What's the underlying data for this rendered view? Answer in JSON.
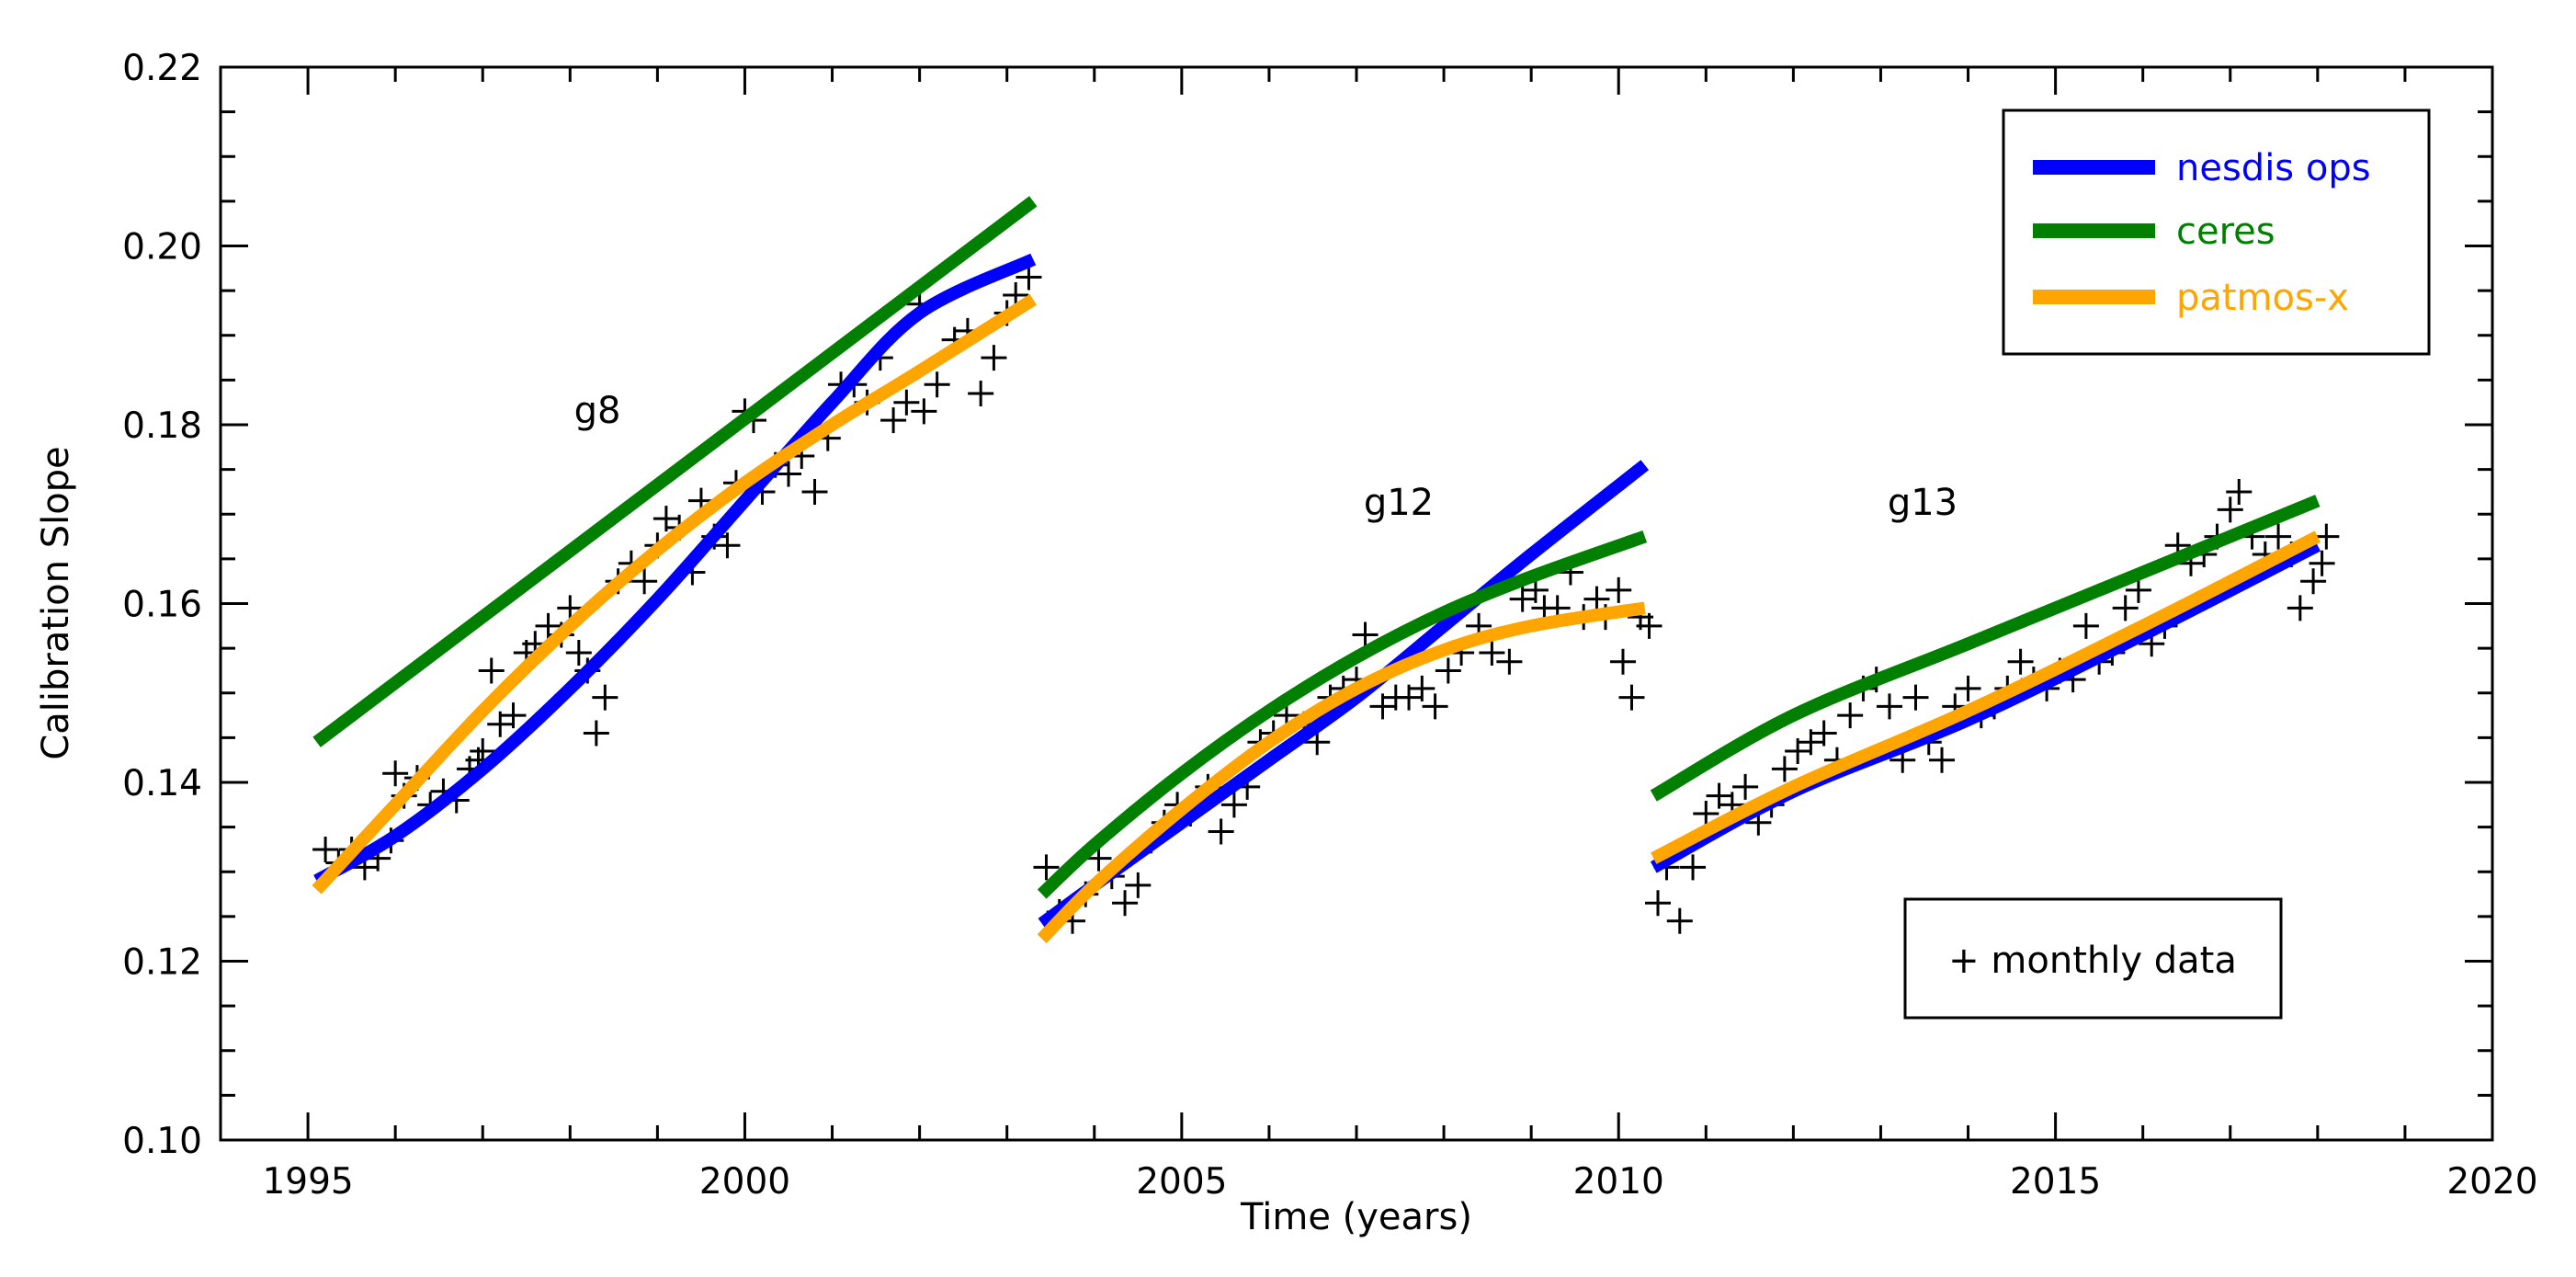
{
  "chart_data": {
    "type": "line",
    "title": "",
    "xlabel": "Time (years)",
    "ylabel": "Calibration Slope",
    "xlim": [
      1994,
      2020
    ],
    "ylim": [
      0.1,
      0.22
    ],
    "x_ticks": [
      1995,
      2000,
      2005,
      2010,
      2015,
      2020
    ],
    "x_tick_labels": [
      "1995",
      "2000",
      "2005",
      "2010",
      "2015",
      "2020"
    ],
    "y_ticks": [
      0.1,
      0.12,
      0.14,
      0.16,
      0.18,
      0.2,
      0.22
    ],
    "y_tick_labels": [
      "0.10",
      "0.12",
      "0.14",
      "0.16",
      "0.18",
      "0.20",
      "0.22"
    ],
    "grid": false,
    "legend": {
      "position": "top-right",
      "entries": [
        {
          "name": "nesdis ops",
          "color": "#0000ff"
        },
        {
          "name": "ceres",
          "color": "#007f00"
        },
        {
          "name": "patmos-x",
          "color": "#ffa500"
        }
      ]
    },
    "scatter_legend": {
      "label": "+ monthly data",
      "position": "bottom-right"
    },
    "annotations": [
      {
        "text": "g8",
        "x": 1998.2,
        "y": 0.181
      },
      {
        "text": "g12",
        "x": 2007.6,
        "y": 0.171
      },
      {
        "text": "g13",
        "x": 2013.6,
        "y": 0.171
      }
    ],
    "series": [
      {
        "name": "nesdis ops",
        "satellite": "g8",
        "color": "#0000ff",
        "x": [
          1995.1,
          1996,
          1997,
          1998,
          1999,
          2000,
          2001,
          2002,
          2003.3
        ],
        "y": [
          0.129,
          0.134,
          0.1415,
          0.1505,
          0.1605,
          0.1715,
          0.1825,
          0.1925,
          0.1985
        ]
      },
      {
        "name": "ceres",
        "satellite": "g8",
        "color": "#007f00",
        "x": [
          1995.1,
          2003.3
        ],
        "y": [
          0.1445,
          0.205
        ]
      },
      {
        "name": "patmos-x",
        "satellite": "g8",
        "color": "#ffa500",
        "x": [
          1995.1,
          1996,
          1997,
          1998,
          1999,
          2000,
          2001,
          2002,
          2003.3
        ],
        "y": [
          0.128,
          0.1375,
          0.148,
          0.1575,
          0.166,
          0.1735,
          0.18,
          0.186,
          0.194
        ]
      },
      {
        "name": "nesdis ops",
        "satellite": "g12",
        "color": "#0000ff",
        "x": [
          2003.4,
          2004,
          2005,
          2006,
          2007,
          2008,
          2009,
          2010.3
        ],
        "y": [
          0.1242,
          0.1285,
          0.1355,
          0.1425,
          0.1495,
          0.1575,
          0.1655,
          0.1755
        ]
      },
      {
        "name": "ceres",
        "satellite": "g12",
        "color": "#007f00",
        "x": [
          2003.4,
          2004,
          2005,
          2006,
          2007,
          2008,
          2009,
          2010.3
        ],
        "y": [
          0.1275,
          0.133,
          0.141,
          0.148,
          0.154,
          0.159,
          0.163,
          0.1675
        ]
      },
      {
        "name": "patmos-x",
        "satellite": "g12",
        "color": "#ffa500",
        "x": [
          2003.4,
          2004,
          2005,
          2006,
          2007,
          2008,
          2009,
          2010.3
        ],
        "y": [
          0.1225,
          0.1285,
          0.137,
          0.1445,
          0.1505,
          0.1548,
          0.1575,
          0.1595
        ]
      },
      {
        "name": "nesdis ops",
        "satellite": "g13",
        "color": "#0000ff",
        "x": [
          2010.4,
          2012,
          2014,
          2016,
          2018
        ],
        "y": [
          0.1305,
          0.139,
          0.147,
          0.1565,
          0.1665
        ]
      },
      {
        "name": "ceres",
        "satellite": "g13",
        "color": "#007f00",
        "x": [
          2010.4,
          2012,
          2014,
          2016,
          2018
        ],
        "y": [
          0.1385,
          0.1475,
          0.1555,
          0.1635,
          0.1715
        ]
      },
      {
        "name": "patmos-x",
        "satellite": "g13",
        "color": "#ffa500",
        "x": [
          2010.4,
          2012,
          2014,
          2016,
          2018
        ],
        "y": [
          0.1315,
          0.1395,
          0.148,
          0.1575,
          0.1675
        ]
      }
    ],
    "monthly_data": [
      [
        1995.2,
        0.1325
      ],
      [
        1995.35,
        0.131
      ],
      [
        1995.5,
        0.1325
      ],
      [
        1995.65,
        0.1305
      ],
      [
        1995.8,
        0.1315
      ],
      [
        1995.95,
        0.1335
      ],
      [
        1996.0,
        0.141
      ],
      [
        1996.1,
        0.1385
      ],
      [
        1996.25,
        0.1405
      ],
      [
        1996.4,
        0.1375
      ],
      [
        1996.55,
        0.139
      ],
      [
        1996.7,
        0.138
      ],
      [
        1996.85,
        0.1415
      ],
      [
        1996.95,
        0.1425
      ],
      [
        1997.0,
        0.1435
      ],
      [
        1997.1,
        0.1525
      ],
      [
        1997.2,
        0.1465
      ],
      [
        1997.35,
        0.1475
      ],
      [
        1997.5,
        0.1545
      ],
      [
        1997.6,
        0.1555
      ],
      [
        1997.75,
        0.1575
      ],
      [
        1997.9,
        0.1565
      ],
      [
        1998.0,
        0.1595
      ],
      [
        1998.1,
        0.1545
      ],
      [
        1998.2,
        0.1525
      ],
      [
        1998.3,
        0.1455
      ],
      [
        1998.4,
        0.1495
      ],
      [
        1998.55,
        0.1625
      ],
      [
        1998.7,
        0.1645
      ],
      [
        1998.85,
        0.1625
      ],
      [
        1999.0,
        0.1665
      ],
      [
        1999.1,
        0.1695
      ],
      [
        1999.25,
        0.1685
      ],
      [
        1999.4,
        0.1635
      ],
      [
        1999.5,
        0.1715
      ],
      [
        1999.65,
        0.1675
      ],
      [
        1999.8,
        0.1665
      ],
      [
        1999.9,
        0.1735
      ],
      [
        2000.0,
        0.1815
      ],
      [
        2000.1,
        0.1805
      ],
      [
        2000.2,
        0.1725
      ],
      [
        2000.35,
        0.1755
      ],
      [
        2000.5,
        0.1745
      ],
      [
        2000.65,
        0.1765
      ],
      [
        2000.8,
        0.1725
      ],
      [
        2000.95,
        0.1785
      ],
      [
        2001.1,
        0.1845
      ],
      [
        2001.25,
        0.1845
      ],
      [
        2001.4,
        0.1825
      ],
      [
        2001.55,
        0.1875
      ],
      [
        2001.7,
        0.1805
      ],
      [
        2001.85,
        0.1825
      ],
      [
        2002.0,
        0.1935
      ],
      [
        2002.05,
        0.1815
      ],
      [
        2002.2,
        0.1845
      ],
      [
        2002.4,
        0.1895
      ],
      [
        2002.55,
        0.1905
      ],
      [
        2002.7,
        0.1835
      ],
      [
        2002.85,
        0.1875
      ],
      [
        2003.0,
        0.1925
      ],
      [
        2003.1,
        0.1945
      ],
      [
        2003.25,
        0.1965
      ],
      [
        2003.45,
        0.1305
      ],
      [
        2003.6,
        0.1255
      ],
      [
        2003.75,
        0.1245
      ],
      [
        2003.9,
        0.1275
      ],
      [
        2004.05,
        0.1315
      ],
      [
        2004.2,
        0.1295
      ],
      [
        2004.35,
        0.1265
      ],
      [
        2004.5,
        0.1285
      ],
      [
        2004.65,
        0.1335
      ],
      [
        2004.8,
        0.1355
      ],
      [
        2004.95,
        0.1375
      ],
      [
        2005.1,
        0.1365
      ],
      [
        2005.3,
        0.1395
      ],
      [
        2005.45,
        0.1345
      ],
      [
        2005.6,
        0.1375
      ],
      [
        2005.75,
        0.1395
      ],
      [
        2005.9,
        0.1445
      ],
      [
        2006.05,
        0.1455
      ],
      [
        2006.2,
        0.1475
      ],
      [
        2006.4,
        0.1465
      ],
      [
        2006.55,
        0.1445
      ],
      [
        2006.7,
        0.1495
      ],
      [
        2006.85,
        0.1505
      ],
      [
        2007.0,
        0.1515
      ],
      [
        2007.1,
        0.1565
      ],
      [
        2007.3,
        0.1485
      ],
      [
        2007.45,
        0.1495
      ],
      [
        2007.6,
        0.1495
      ],
      [
        2007.75,
        0.1505
      ],
      [
        2007.9,
        0.1485
      ],
      [
        2008.05,
        0.1525
      ],
      [
        2008.2,
        0.1545
      ],
      [
        2008.4,
        0.1575
      ],
      [
        2008.55,
        0.1545
      ],
      [
        2008.75,
        0.1535
      ],
      [
        2008.9,
        0.1605
      ],
      [
        2009.05,
        0.1615
      ],
      [
        2009.15,
        0.1595
      ],
      [
        2009.3,
        0.1595
      ],
      [
        2009.45,
        0.1635
      ],
      [
        2009.6,
        0.1585
      ],
      [
        2009.75,
        0.1605
      ],
      [
        2009.85,
        0.1585
      ],
      [
        2010.0,
        0.1615
      ],
      [
        2010.05,
        0.1535
      ],
      [
        2010.15,
        0.1495
      ],
      [
        2010.25,
        0.1585
      ],
      [
        2010.35,
        0.1575
      ],
      [
        2010.45,
        0.1265
      ],
      [
        2010.55,
        0.1305
      ],
      [
        2010.7,
        0.1245
      ],
      [
        2010.85,
        0.1305
      ],
      [
        2011.0,
        0.1365
      ],
      [
        2011.15,
        0.1385
      ],
      [
        2011.3,
        0.1375
      ],
      [
        2011.45,
        0.1395
      ],
      [
        2011.6,
        0.1355
      ],
      [
        2011.75,
        0.1375
      ],
      [
        2011.9,
        0.1415
      ],
      [
        2012.05,
        0.1435
      ],
      [
        2012.2,
        0.1445
      ],
      [
        2012.35,
        0.1455
      ],
      [
        2012.5,
        0.1425
      ],
      [
        2012.65,
        0.1475
      ],
      [
        2012.8,
        0.1505
      ],
      [
        2012.95,
        0.1515
      ],
      [
        2013.1,
        0.1485
      ],
      [
        2013.25,
        0.1425
      ],
      [
        2013.4,
        0.1495
      ],
      [
        2013.55,
        0.1445
      ],
      [
        2013.7,
        0.1425
      ],
      [
        2013.85,
        0.1485
      ],
      [
        2014.0,
        0.1505
      ],
      [
        2014.15,
        0.1475
      ],
      [
        2014.3,
        0.1485
      ],
      [
        2014.45,
        0.1505
      ],
      [
        2014.6,
        0.1535
      ],
      [
        2014.75,
        0.1515
      ],
      [
        2014.9,
        0.1505
      ],
      [
        2015.05,
        0.1525
      ],
      [
        2015.2,
        0.1515
      ],
      [
        2015.35,
        0.1575
      ],
      [
        2015.5,
        0.1535
      ],
      [
        2015.65,
        0.1545
      ],
      [
        2015.8,
        0.1595
      ],
      [
        2015.95,
        0.1615
      ],
      [
        2016.1,
        0.1555
      ],
      [
        2016.25,
        0.1575
      ],
      [
        2016.4,
        0.1665
      ],
      [
        2016.55,
        0.1645
      ],
      [
        2016.7,
        0.1655
      ],
      [
        2016.85,
        0.1675
      ],
      [
        2017.0,
        0.1705
      ],
      [
        2017.1,
        0.1725
      ],
      [
        2017.25,
        0.1675
      ],
      [
        2017.4,
        0.1655
      ],
      [
        2017.55,
        0.1675
      ],
      [
        2017.7,
        0.1655
      ],
      [
        2017.8,
        0.1595
      ],
      [
        2017.95,
        0.1625
      ],
      [
        2018.05,
        0.1645
      ],
      [
        2018.1,
        0.1675
      ]
    ]
  }
}
